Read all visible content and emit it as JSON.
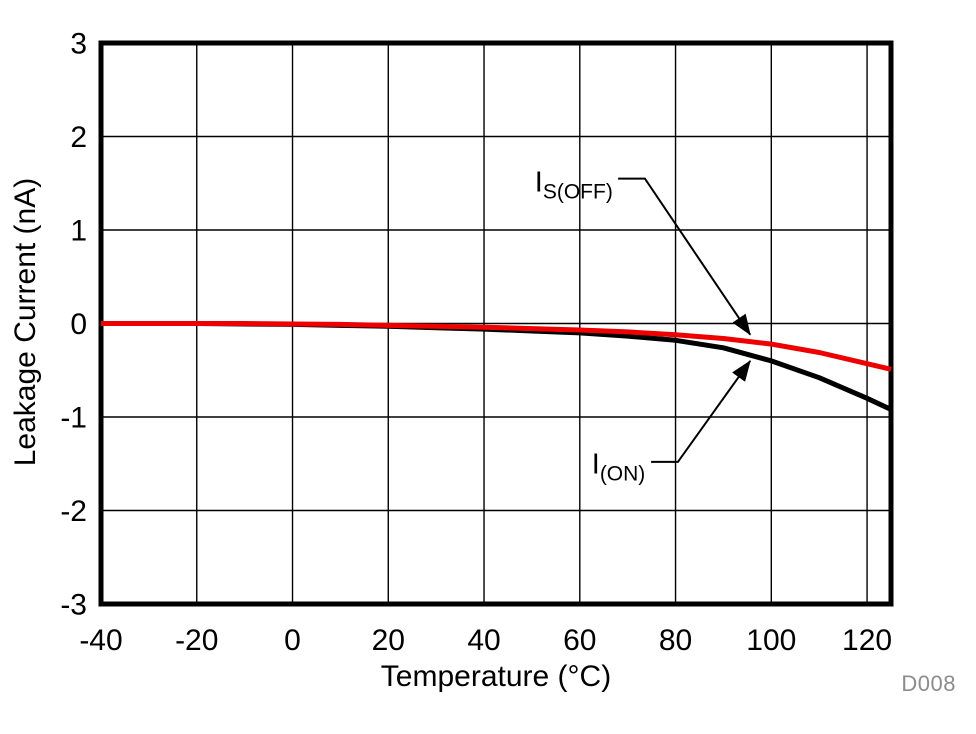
{
  "chart_data": {
    "type": "line",
    "title": "",
    "xlabel": "Temperature (°C)",
    "ylabel": "Leakage Current (nA)",
    "watermark": "D008",
    "xlim": [
      -40,
      125
    ],
    "ylim": [
      -3,
      3
    ],
    "xticks": [
      -40,
      -20,
      0,
      20,
      40,
      60,
      80,
      100,
      120
    ],
    "yticks": [
      -3,
      -2,
      -1,
      0,
      1,
      2,
      3
    ],
    "grid": true,
    "legend_position": "none-inline-leader-annotations",
    "x": [
      -40,
      -30,
      -20,
      -10,
      0,
      10,
      20,
      30,
      40,
      50,
      60,
      70,
      80,
      90,
      100,
      110,
      120,
      125
    ],
    "series": [
      {
        "name": "IS(OFF)",
        "color": "#ee0000",
        "values": [
          0,
          0,
          0,
          0,
          -0.005,
          -0.01,
          -0.02,
          -0.03,
          -0.04,
          -0.055,
          -0.07,
          -0.09,
          -0.12,
          -0.16,
          -0.22,
          -0.31,
          -0.43,
          -0.49
        ]
      },
      {
        "name": "I(ON)",
        "color": "#000000",
        "values": [
          0,
          0,
          0,
          -0.005,
          -0.01,
          -0.02,
          -0.03,
          -0.045,
          -0.06,
          -0.08,
          -0.1,
          -0.135,
          -0.18,
          -0.26,
          -0.4,
          -0.58,
          -0.8,
          -0.92
        ]
      }
    ],
    "annotations": [
      {
        "series": "IS(OFF)",
        "label_main": "I",
        "label_sub": "S(OFF)",
        "label_at": {
          "t": 50.6,
          "i": 1.5
        },
        "leader": [
          {
            "t": 68.0,
            "i": 1.55
          },
          {
            "t": 73.6,
            "i": 1.55
          },
          {
            "t": 95.6,
            "i": -0.12
          }
        ]
      },
      {
        "series": "I(ON)",
        "label_main": "I",
        "label_sub": "(ON)",
        "label_at": {
          "t": 62.5,
          "i": -1.51
        },
        "leader": [
          {
            "t": 74.9,
            "i": -1.48
          },
          {
            "t": 80.5,
            "i": -1.48
          },
          {
            "t": 95.6,
            "i": -0.4
          }
        ]
      }
    ]
  },
  "colors": {
    "axis": "#000000",
    "grid": "#000000",
    "curve_red": "#ee0000",
    "curve_black": "#000000",
    "watermark_gray": "#8c8c8c"
  }
}
